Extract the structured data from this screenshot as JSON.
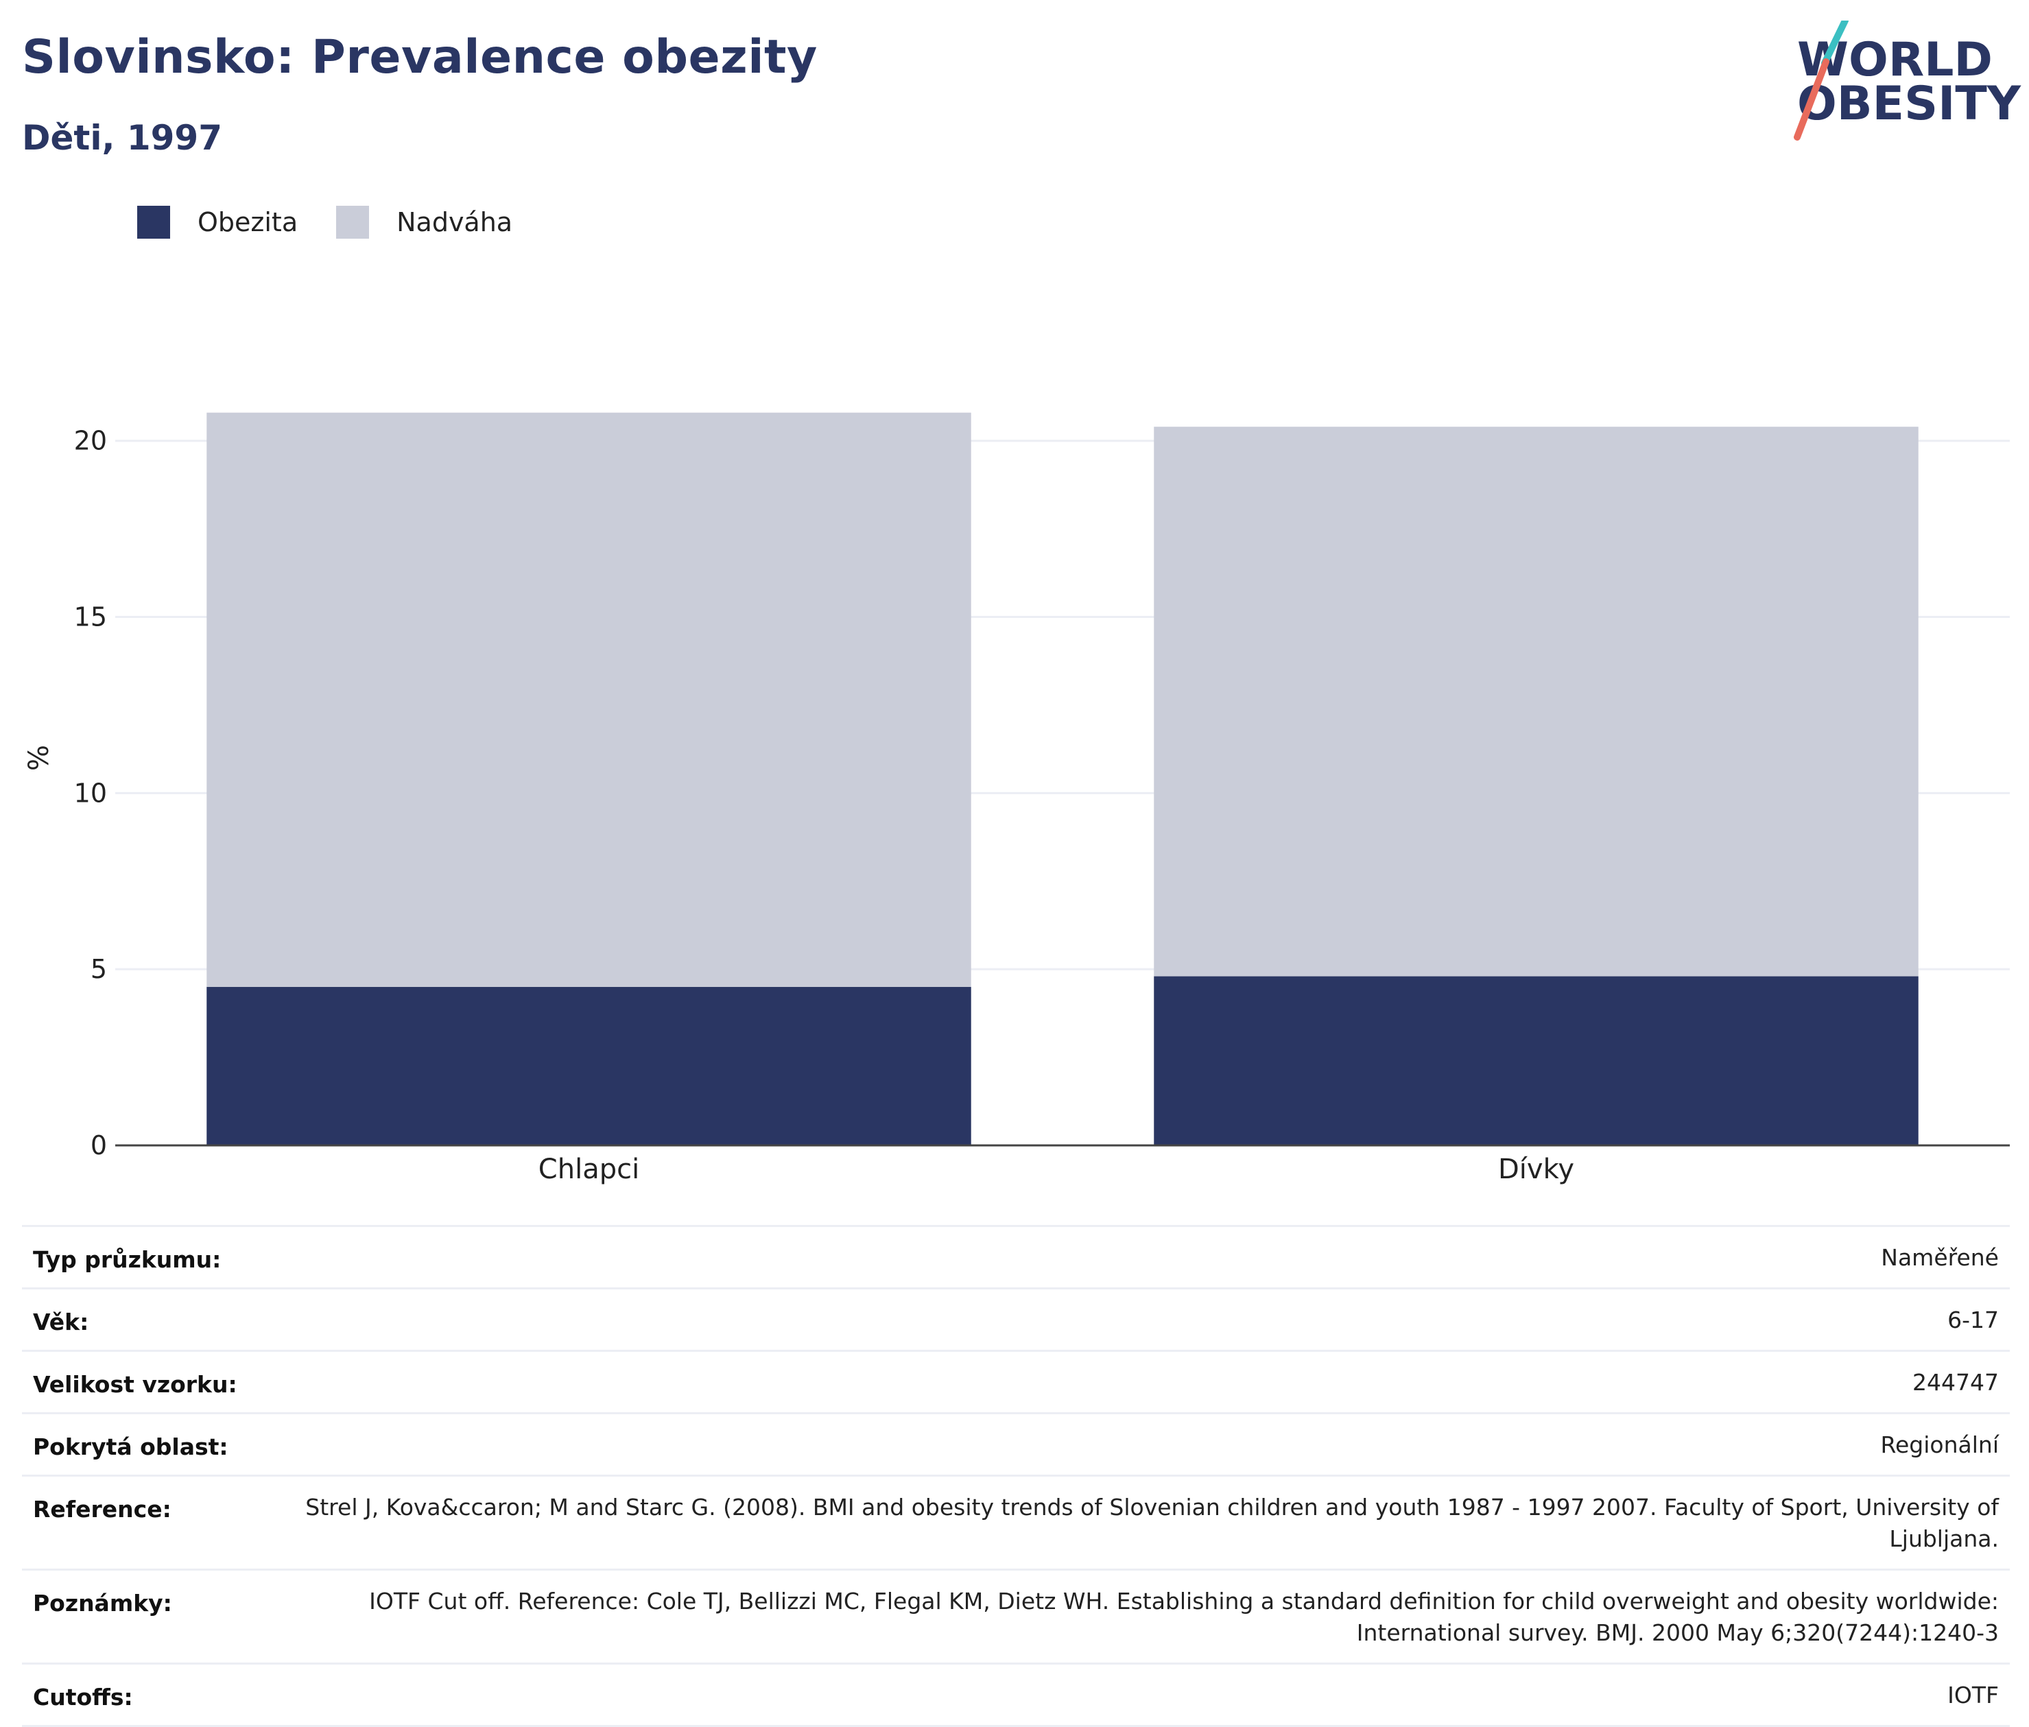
{
  "title": "Slovinsko: Prevalence obezity",
  "subtitle": "Děti, 1997",
  "logo": {
    "line1": "WORLD",
    "line2": "OBESITY"
  },
  "legend": [
    {
      "label": "Obezita",
      "color": "#2a3663"
    },
    {
      "label": "Nadváha",
      "color": "#cacdd9"
    }
  ],
  "chart_data": {
    "type": "bar",
    "stacked": true,
    "categories": [
      "Chlapci",
      "Dívky"
    ],
    "series": [
      {
        "name": "Obezita",
        "color": "#2a3663",
        "values": [
          4.5,
          4.8
        ]
      },
      {
        "name": "Nadváha",
        "color": "#cacdd9",
        "values": [
          16.3,
          15.6
        ]
      }
    ],
    "ylabel": "%",
    "ylim": [
      0,
      22
    ],
    "yticks": [
      0,
      5,
      10,
      15,
      20
    ],
    "grid": true,
    "legend_position": "top-left"
  },
  "info": [
    {
      "key": "Typ průzkumu:",
      "value": "Naměřené"
    },
    {
      "key": "Věk:",
      "value": "6-17"
    },
    {
      "key": "Velikost vzorku:",
      "value": "244747"
    },
    {
      "key": "Pokrytá oblast:",
      "value": "Regionální"
    },
    {
      "key": "Reference:",
      "value": "Strel J, Kova&ccaron; M and Starc G. (2008). BMI and obesity trends of Slovenian children and youth 1987 - 1997 2007. Faculty of Sport, University of Ljubljana."
    },
    {
      "key": "Poznámky:",
      "value": "IOTF Cut off. Reference: Cole TJ, Bellizzi MC, Flegal KM, Dietz WH. Establishing a standard definition for child overweight and obesity worldwide: International survey. BMJ. 2000 May 6;320(7244):1240-3"
    },
    {
      "key": "Cutoffs:",
      "value": "IOTF"
    }
  ]
}
